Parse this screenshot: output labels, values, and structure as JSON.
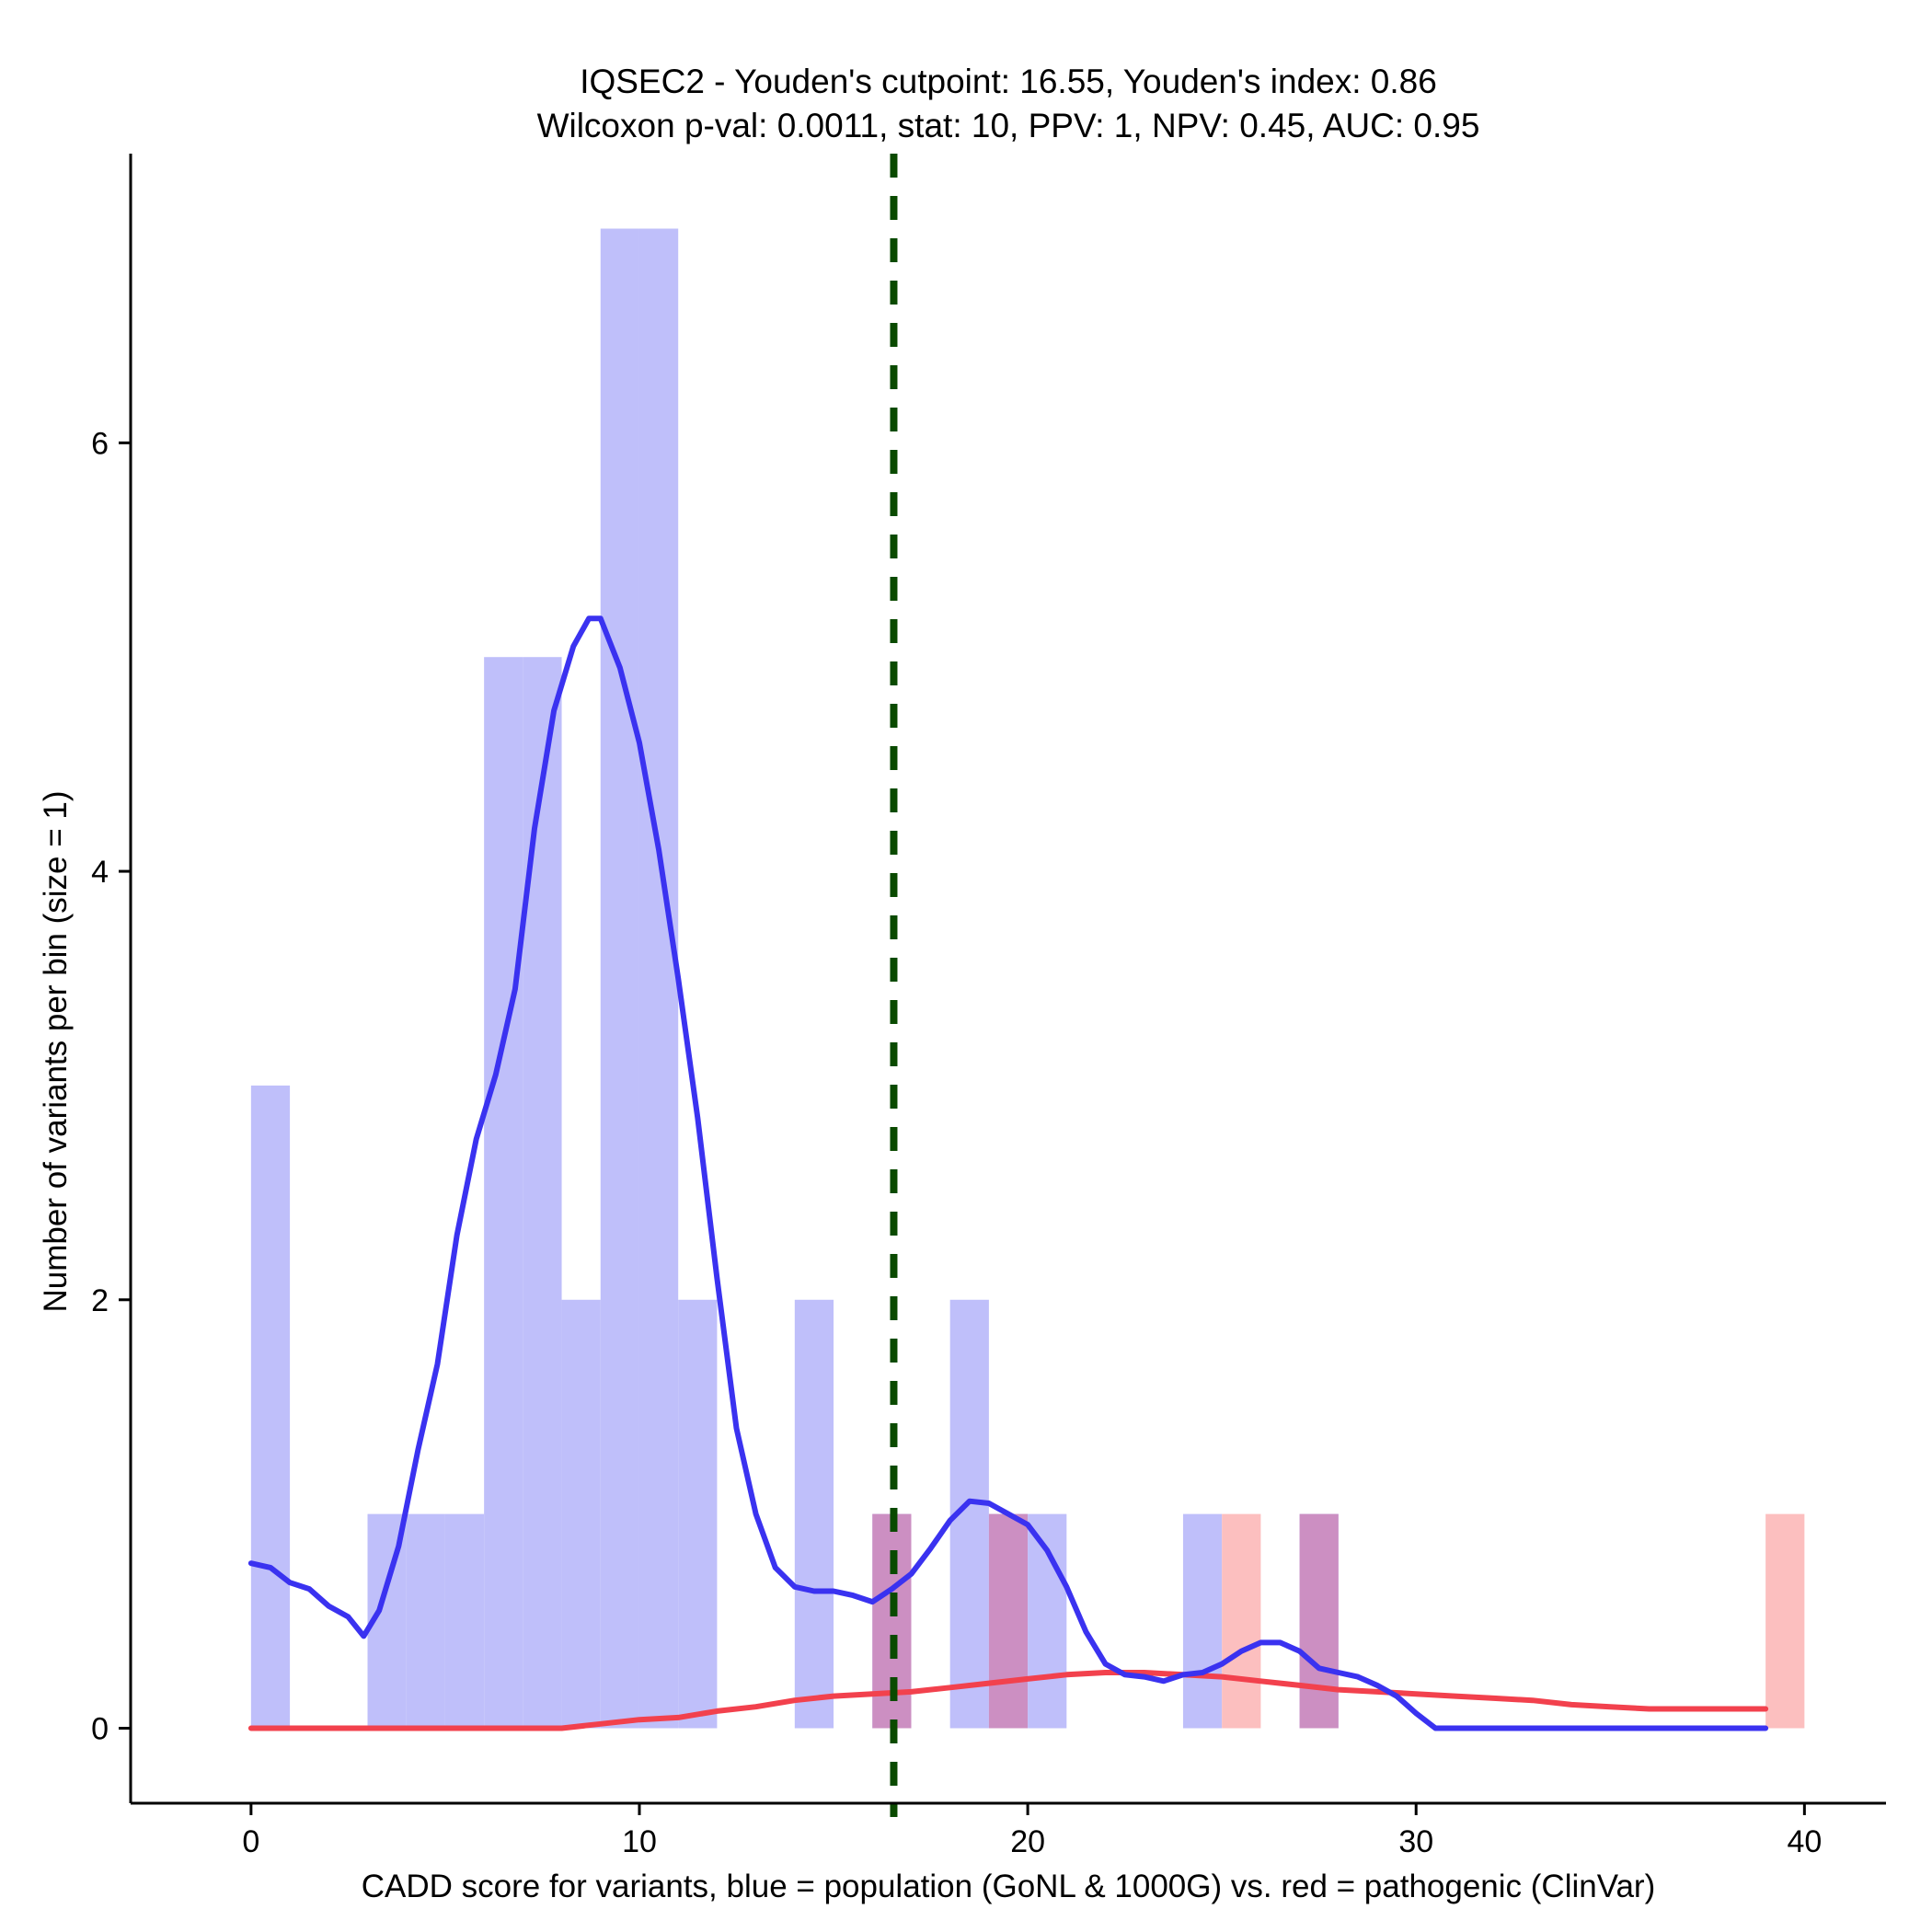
{
  "chart_data": {
    "type": "bar",
    "title_line1": "IQSEC2 - Youden's cutpoint: 16.55, Youden's index: 0.86",
    "title_line2": "Wilcoxon p-val: 0.0011, stat: 10, PPV: 1, NPV: 0.45, AUC: 0.95",
    "xlabel": "CADD score for variants, blue = population (GoNL & 1000G) vs. red = pathogenic (ClinVar)",
    "ylabel": "Number of variants per bin (size = 1)",
    "xlim": [
      -3.1,
      42.1
    ],
    "ylim": [
      -0.35,
      7.35
    ],
    "x_ticks": [
      0,
      10,
      20,
      30,
      40
    ],
    "x_tick_labels": [
      "0",
      "10",
      "20",
      "30",
      "40"
    ],
    "y_ticks": [
      0,
      2,
      4,
      6
    ],
    "y_tick_labels": [
      "0",
      "2",
      "4",
      "6"
    ],
    "grid": false,
    "cutpoint": 16.55,
    "colors": {
      "population_bar": "#bfbffa",
      "pathogenic_bar": "#fcbfbf",
      "overlap_bar": "#cc8fc2",
      "population_density": "#3a32f0",
      "pathogenic_density": "#f2414d",
      "cutpoint_line": "#0a4a00"
    },
    "series": [
      {
        "role": "population",
        "bins": [
          [
            0,
            3
          ],
          [
            3,
            1
          ],
          [
            4,
            1
          ],
          [
            5,
            1
          ],
          [
            6,
            5
          ],
          [
            7,
            5
          ],
          [
            8,
            2
          ],
          [
            9,
            7
          ],
          [
            10,
            7
          ],
          [
            11,
            2
          ],
          [
            14,
            2
          ],
          [
            16,
            1
          ],
          [
            18,
            2
          ],
          [
            19,
            1
          ],
          [
            20,
            1
          ],
          [
            24,
            1
          ],
          [
            27,
            1
          ]
        ],
        "density": [
          [
            0,
            0.77
          ],
          [
            0.5,
            0.75
          ],
          [
            1,
            0.68
          ],
          [
            1.5,
            0.65
          ],
          [
            2,
            0.57
          ],
          [
            2.5,
            0.52
          ],
          [
            2.9,
            0.43
          ],
          [
            3.3,
            0.55
          ],
          [
            3.8,
            0.85
          ],
          [
            4.3,
            1.3
          ],
          [
            4.8,
            1.7
          ],
          [
            5.3,
            2.3
          ],
          [
            5.8,
            2.75
          ],
          [
            6.3,
            3.05
          ],
          [
            6.8,
            3.45
          ],
          [
            7.3,
            4.2
          ],
          [
            7.8,
            4.75
          ],
          [
            8.3,
            5.05
          ],
          [
            8.7,
            5.18
          ],
          [
            9.0,
            5.18
          ],
          [
            9.5,
            4.95
          ],
          [
            10,
            4.6
          ],
          [
            10.5,
            4.1
          ],
          [
            11,
            3.5
          ],
          [
            11.5,
            2.85
          ],
          [
            12,
            2.1
          ],
          [
            12.5,
            1.4
          ],
          [
            13,
            1.0
          ],
          [
            13.5,
            0.75
          ],
          [
            14,
            0.66
          ],
          [
            14.5,
            0.64
          ],
          [
            15,
            0.64
          ],
          [
            15.5,
            0.62
          ],
          [
            16,
            0.59
          ],
          [
            16.5,
            0.65
          ],
          [
            17,
            0.72
          ],
          [
            17.5,
            0.84
          ],
          [
            18,
            0.97
          ],
          [
            18.5,
            1.06
          ],
          [
            19,
            1.05
          ],
          [
            19.5,
            1.0
          ],
          [
            20,
            0.95
          ],
          [
            20.5,
            0.83
          ],
          [
            21,
            0.66
          ],
          [
            21.5,
            0.45
          ],
          [
            22,
            0.3
          ],
          [
            22.5,
            0.25
          ],
          [
            23,
            0.24
          ],
          [
            23.5,
            0.22
          ],
          [
            24,
            0.25
          ],
          [
            24.5,
            0.26
          ],
          [
            25,
            0.3
          ],
          [
            25.5,
            0.36
          ],
          [
            26,
            0.4
          ],
          [
            26.5,
            0.4
          ],
          [
            27,
            0.36
          ],
          [
            27.5,
            0.28
          ],
          [
            28,
            0.26
          ],
          [
            28.5,
            0.24
          ],
          [
            29,
            0.2
          ],
          [
            29.5,
            0.15
          ],
          [
            30,
            0.07
          ],
          [
            30.5,
            0.0
          ],
          [
            39,
            0.0
          ]
        ]
      },
      {
        "role": "pathogenic",
        "bins": [
          [
            16,
            1
          ],
          [
            19,
            1
          ],
          [
            25,
            1
          ],
          [
            27,
            1
          ],
          [
            39,
            1
          ]
        ],
        "density": [
          [
            0,
            0.0
          ],
          [
            8,
            0.0
          ],
          [
            9,
            0.02
          ],
          [
            10,
            0.04
          ],
          [
            11,
            0.05
          ],
          [
            12,
            0.08
          ],
          [
            13,
            0.1
          ],
          [
            14,
            0.13
          ],
          [
            15,
            0.15
          ],
          [
            16,
            0.16
          ],
          [
            17,
            0.17
          ],
          [
            18,
            0.19
          ],
          [
            19,
            0.21
          ],
          [
            20,
            0.23
          ],
          [
            21,
            0.25
          ],
          [
            22,
            0.26
          ],
          [
            23,
            0.26
          ],
          [
            24,
            0.25
          ],
          [
            25,
            0.24
          ],
          [
            26,
            0.22
          ],
          [
            27,
            0.2
          ],
          [
            28,
            0.18
          ],
          [
            29,
            0.17
          ],
          [
            30,
            0.16
          ],
          [
            31,
            0.15
          ],
          [
            32,
            0.14
          ],
          [
            33,
            0.13
          ],
          [
            34,
            0.11
          ],
          [
            35,
            0.1
          ],
          [
            36,
            0.09
          ],
          [
            37,
            0.09
          ],
          [
            38,
            0.09
          ],
          [
            39,
            0.09
          ]
        ]
      }
    ]
  }
}
